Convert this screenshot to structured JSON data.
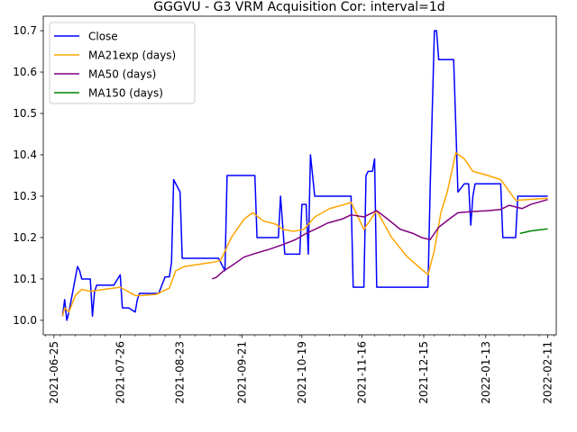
{
  "chart_data": {
    "type": "line",
    "title": "GGGVU - G3 VRM Acquisition Cor: interval=1d",
    "xlabel": "",
    "ylabel": "",
    "x_axis": {
      "type": "date",
      "range": [
        "2021-06-20",
        "2022-02-15"
      ],
      "major_ticks": [
        "2021-06-25",
        "2021-07-26",
        "2021-08-23",
        "2021-09-21",
        "2021-10-19",
        "2021-11-16",
        "2021-12-15",
        "2022-01-13",
        "2022-02-11"
      ],
      "tick_label_rotation": "vertical"
    },
    "y_axis": {
      "range": [
        9.965,
        10.735
      ],
      "ticks": [
        10.0,
        10.1,
        10.2,
        10.3,
        10.4,
        10.5,
        10.6,
        10.7
      ]
    },
    "grid": false,
    "legend": {
      "position": "top-left"
    },
    "series": [
      {
        "name": "Close",
        "color": "#0000ff",
        "points": [
          [
            "2021-06-29",
            10.01
          ],
          [
            "2021-06-30",
            10.05
          ],
          [
            "2021-07-01",
            10.0
          ],
          [
            "2021-07-02",
            10.02
          ],
          [
            "2021-07-06",
            10.13
          ],
          [
            "2021-07-07",
            10.12
          ],
          [
            "2021-07-08",
            10.1
          ],
          [
            "2021-07-12",
            10.1
          ],
          [
            "2021-07-13",
            10.01
          ],
          [
            "2021-07-14",
            10.07
          ],
          [
            "2021-07-15",
            10.085
          ],
          [
            "2021-07-23",
            10.085
          ],
          [
            "2021-07-26",
            10.11
          ],
          [
            "2021-07-27",
            10.03
          ],
          [
            "2021-07-30",
            10.03
          ],
          [
            "2021-08-02",
            10.02
          ],
          [
            "2021-08-03",
            10.05
          ],
          [
            "2021-08-04",
            10.065
          ],
          [
            "2021-08-13",
            10.065
          ],
          [
            "2021-08-16",
            10.105
          ],
          [
            "2021-08-18",
            10.105
          ],
          [
            "2021-08-19",
            10.14
          ],
          [
            "2021-08-20",
            10.34
          ],
          [
            "2021-08-23",
            10.31
          ],
          [
            "2021-08-24",
            10.15
          ],
          [
            "2021-09-10",
            10.15
          ],
          [
            "2021-09-13",
            10.12
          ],
          [
            "2021-09-14",
            10.35
          ],
          [
            "2021-09-27",
            10.35
          ],
          [
            "2021-09-28",
            10.2
          ],
          [
            "2021-10-08",
            10.2
          ],
          [
            "2021-10-09",
            10.3
          ],
          [
            "2021-10-11",
            10.16
          ],
          [
            "2021-10-18",
            10.16
          ],
          [
            "2021-10-19",
            10.28
          ],
          [
            "2021-10-21",
            10.28
          ],
          [
            "2021-10-22",
            10.16
          ],
          [
            "2021-10-23",
            10.4
          ],
          [
            "2021-10-25",
            10.3
          ],
          [
            "2021-11-11",
            10.3
          ],
          [
            "2021-11-12",
            10.08
          ],
          [
            "2021-11-17",
            10.08
          ],
          [
            "2021-11-18",
            10.35
          ],
          [
            "2021-11-19",
            10.36
          ],
          [
            "2021-11-21",
            10.36
          ],
          [
            "2021-11-22",
            10.39
          ],
          [
            "2021-11-23",
            10.08
          ],
          [
            "2021-12-14",
            10.08
          ],
          [
            "2021-12-17",
            10.08
          ],
          [
            "2021-12-18",
            10.32
          ],
          [
            "2021-12-20",
            10.7
          ],
          [
            "2021-12-21",
            10.7
          ],
          [
            "2021-12-22",
            10.63
          ],
          [
            "2021-12-29",
            10.63
          ],
          [
            "2021-12-31",
            10.31
          ],
          [
            "2022-01-03",
            10.33
          ],
          [
            "2022-01-05",
            10.33
          ],
          [
            "2022-01-06",
            10.23
          ],
          [
            "2022-01-07",
            10.3
          ],
          [
            "2022-01-08",
            10.33
          ],
          [
            "2022-01-20",
            10.33
          ],
          [
            "2022-01-21",
            10.2
          ],
          [
            "2022-01-27",
            10.2
          ],
          [
            "2022-01-28",
            10.3
          ],
          [
            "2022-02-11",
            10.3
          ]
        ]
      },
      {
        "name": "MA21exp (days)",
        "color": "#ffa500",
        "points": [
          [
            "2021-06-29",
            10.01
          ],
          [
            "2021-06-30",
            10.03
          ],
          [
            "2021-07-02",
            10.02
          ],
          [
            "2021-07-05",
            10.06
          ],
          [
            "2021-07-08",
            10.075
          ],
          [
            "2021-07-12",
            10.07
          ],
          [
            "2021-07-19",
            10.075
          ],
          [
            "2021-07-26",
            10.08
          ],
          [
            "2021-08-02",
            10.06
          ],
          [
            "2021-08-05",
            10.06
          ],
          [
            "2021-08-12",
            10.063
          ],
          [
            "2021-08-18",
            10.078
          ],
          [
            "2021-08-21",
            10.12
          ],
          [
            "2021-08-25",
            10.13
          ],
          [
            "2021-09-07",
            10.14
          ],
          [
            "2021-09-11",
            10.145
          ],
          [
            "2021-09-16",
            10.2
          ],
          [
            "2021-09-22",
            10.245
          ],
          [
            "2021-09-26",
            10.26
          ],
          [
            "2021-10-01",
            10.24
          ],
          [
            "2021-10-07",
            10.232
          ],
          [
            "2021-10-10",
            10.22
          ],
          [
            "2021-10-15",
            10.215
          ],
          [
            "2021-10-20",
            10.22
          ],
          [
            "2021-10-25",
            10.25
          ],
          [
            "2021-11-01",
            10.27
          ],
          [
            "2021-11-08",
            10.28
          ],
          [
            "2021-11-11",
            10.285
          ],
          [
            "2021-11-17",
            10.22
          ],
          [
            "2021-11-23",
            10.265
          ],
          [
            "2021-11-30",
            10.2
          ],
          [
            "2021-12-07",
            10.155
          ],
          [
            "2021-12-17",
            10.11
          ],
          [
            "2021-12-20",
            10.17
          ],
          [
            "2021-12-23",
            10.26
          ],
          [
            "2021-12-26",
            10.31
          ],
          [
            "2021-12-30",
            10.405
          ],
          [
            "2022-01-03",
            10.39
          ],
          [
            "2022-01-07",
            10.36
          ],
          [
            "2022-01-14",
            10.35
          ],
          [
            "2022-01-20",
            10.34
          ],
          [
            "2022-01-27",
            10.29
          ],
          [
            "2022-02-11",
            10.295
          ]
        ]
      },
      {
        "name": "MA50 (days)",
        "color": "#800080",
        "points": [
          [
            "2021-09-07",
            10.1
          ],
          [
            "2021-09-09",
            10.104
          ],
          [
            "2021-09-12",
            10.118
          ],
          [
            "2021-09-17",
            10.135
          ],
          [
            "2021-09-22",
            10.153
          ],
          [
            "2021-09-28",
            10.163
          ],
          [
            "2021-10-04",
            10.172
          ],
          [
            "2021-10-10",
            10.183
          ],
          [
            "2021-10-16",
            10.195
          ],
          [
            "2021-10-21",
            10.21
          ],
          [
            "2021-10-26",
            10.222
          ],
          [
            "2021-10-31",
            10.235
          ],
          [
            "2021-11-07",
            10.245
          ],
          [
            "2021-11-11",
            10.255
          ],
          [
            "2021-11-17",
            10.25
          ],
          [
            "2021-11-23",
            10.265
          ],
          [
            "2021-11-28",
            10.245
          ],
          [
            "2021-12-04",
            10.22
          ],
          [
            "2021-12-10",
            10.21
          ],
          [
            "2021-12-14",
            10.2
          ],
          [
            "2021-12-18",
            10.195
          ],
          [
            "2021-12-22",
            10.225
          ],
          [
            "2021-12-27",
            10.245
          ],
          [
            "2021-12-31",
            10.26
          ],
          [
            "2022-01-07",
            10.263
          ],
          [
            "2022-01-14",
            10.265
          ],
          [
            "2022-01-20",
            10.268
          ],
          [
            "2022-01-24",
            10.278
          ],
          [
            "2022-01-30",
            10.27
          ],
          [
            "2022-02-03",
            10.28
          ],
          [
            "2022-02-11",
            10.292
          ]
        ]
      },
      {
        "name": "MA150 (days)",
        "color": "#008000",
        "points": [
          [
            "2022-01-29",
            10.21
          ],
          [
            "2022-02-03",
            10.216
          ],
          [
            "2022-02-11",
            10.221
          ]
        ]
      }
    ]
  }
}
